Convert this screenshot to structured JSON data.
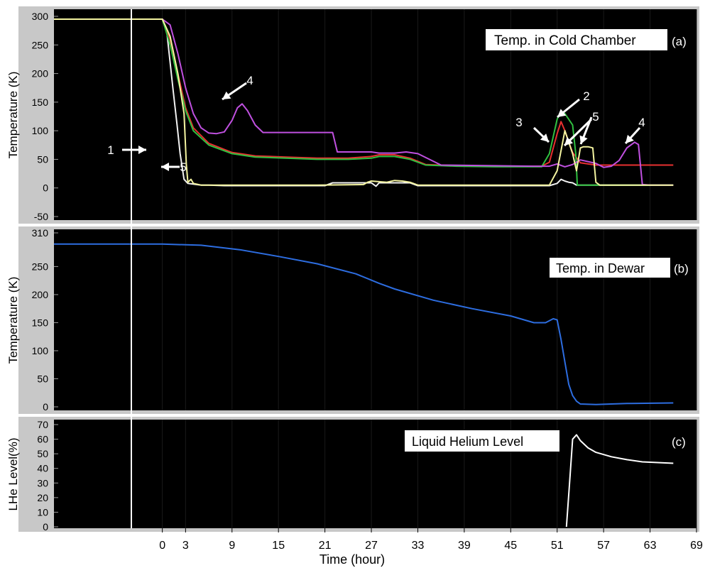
{
  "chart_data": [
    {
      "type": "line",
      "panel_label": "(a)",
      "title": "Temp. in Cold Chamber",
      "ylabel": "Temperature (K)",
      "xlabel": "",
      "xlim": [
        -14,
        69
      ],
      "ylim": [
        -50,
        300
      ],
      "yticks": [
        300,
        250,
        200,
        150,
        100,
        50,
        0,
        -50
      ],
      "ytick_labels": [
        "300",
        "250",
        "200",
        "150",
        "100",
        "50",
        "0",
        "-50"
      ],
      "grid": true,
      "series": [
        {
          "id": "s1",
          "color": "#f2f2f2",
          "x": [
            -14,
            0,
            0.6,
            1.4,
            1.9,
            2.3,
            2.8,
            3.3,
            5,
            6,
            8,
            21,
            22,
            27,
            27.6,
            28,
            32,
            33,
            50,
            51,
            51.5,
            52,
            52.5,
            53,
            53.5,
            54,
            60,
            66
          ],
          "y": [
            295,
            295,
            270,
            170,
            110,
            60,
            15,
            8,
            5,
            5,
            4,
            4,
            9,
            9,
            3,
            9,
            9,
            4,
            4,
            8,
            15,
            12,
            10,
            9,
            5,
            5,
            5,
            5
          ]
        },
        {
          "id": "s2",
          "color": "#e83030",
          "x": [
            -14,
            0,
            1,
            2,
            3,
            4,
            6,
            9,
            12,
            16,
            20,
            24,
            27,
            28,
            30,
            32,
            34,
            38,
            43,
            49,
            50,
            51,
            51.5,
            52,
            52.5,
            53,
            54,
            56,
            60,
            66
          ],
          "y": [
            295,
            295,
            260,
            200,
            140,
            105,
            78,
            62,
            56,
            54,
            52,
            52,
            55,
            58,
            58,
            52,
            41,
            39,
            38,
            38,
            45,
            95,
            116,
            100,
            80,
            62,
            44,
            40,
            40,
            40
          ]
        },
        {
          "id": "s3",
          "color": "#30c040",
          "x": [
            -14,
            0,
            1,
            2,
            3,
            4,
            6,
            9,
            12,
            16,
            20,
            24,
            27,
            28,
            30,
            32,
            34,
            38,
            43,
            49,
            50,
            51,
            51.5,
            52,
            53,
            53.4,
            53.6,
            54,
            60,
            66
          ],
          "y": [
            295,
            295,
            250,
            190,
            135,
            100,
            75,
            60,
            54,
            52,
            50,
            50,
            52,
            55,
            55,
            50,
            40,
            38,
            37,
            37,
            60,
            120,
            135,
            130,
            110,
            60,
            5,
            5,
            5,
            5
          ]
        },
        {
          "id": "s4",
          "color": "#c050e0",
          "x": [
            -14,
            0,
            1,
            2,
            3,
            4,
            5,
            6,
            7,
            8,
            9,
            9.7,
            10.3,
            11,
            12,
            13,
            22,
            22.6,
            27,
            28,
            30,
            31.5,
            33,
            36,
            48,
            50,
            51,
            52,
            53,
            54,
            56,
            57,
            58,
            59,
            60,
            61,
            61.5,
            62,
            63,
            66
          ],
          "y": [
            295,
            295,
            285,
            235,
            175,
            130,
            105,
            96,
            95,
            98,
            118,
            140,
            147,
            135,
            110,
            97,
            97,
            63,
            63,
            61,
            61,
            63,
            60,
            40,
            38,
            38,
            42,
            37,
            41,
            49,
            43,
            36,
            38,
            48,
            70,
            80,
            76,
            6,
            5,
            5
          ]
        },
        {
          "id": "s5",
          "color": "#f4f4a0",
          "x": [
            -14,
            0,
            1,
            2,
            2.8,
            3.1,
            3.3,
            3.7,
            4,
            5,
            10,
            20,
            26,
            26.5,
            27,
            28,
            29,
            30,
            31,
            32,
            33,
            35,
            49,
            50,
            51,
            52,
            52.5,
            53,
            53.5,
            54,
            54.4,
            55,
            55.6,
            56,
            56.5,
            66
          ],
          "y": [
            295,
            295,
            265,
            200,
            130,
            40,
            10,
            15,
            8,
            5,
            5,
            5,
            6,
            10,
            12,
            11,
            10,
            13,
            12,
            10,
            5,
            5,
            5,
            5,
            30,
            100,
            80,
            60,
            30,
            70,
            72,
            72,
            70,
            10,
            5,
            5
          ]
        }
      ],
      "annotations": [
        {
          "text": "1",
          "target_series": "s1"
        },
        {
          "text": "2",
          "target_series": "s2"
        },
        {
          "text": "3",
          "target_series": "s3"
        },
        {
          "text": "4",
          "target_series": "s4"
        },
        {
          "text": "4",
          "target_series": "s4"
        },
        {
          "text": "5",
          "target_series": "s5"
        },
        {
          "text": "5",
          "target_series": "s5"
        }
      ]
    },
    {
      "type": "line",
      "panel_label": "(b)",
      "title": "Temp. in Dewar",
      "ylabel": "Temperature (K)",
      "xlabel": "",
      "xlim": [
        -14,
        69
      ],
      "ylim": [
        0,
        310
      ],
      "yticks": [
        310,
        250,
        200,
        150,
        100,
        50,
        0
      ],
      "ytick_labels": [
        "310",
        "250",
        "200",
        "150",
        "100",
        "50",
        "0"
      ],
      "grid": true,
      "series": [
        {
          "id": "dewar",
          "color": "#2d6de0",
          "x": [
            -14,
            0,
            5,
            10,
            15,
            20,
            25,
            28,
            30,
            35,
            40,
            45,
            48,
            49.5,
            50.5,
            51,
            51.5,
            52,
            52.5,
            53,
            53.5,
            54,
            56,
            60,
            66
          ],
          "y": [
            290,
            290,
            288,
            280,
            268,
            255,
            237,
            220,
            210,
            190,
            175,
            162,
            150,
            150,
            157,
            155,
            120,
            80,
            40,
            20,
            10,
            5,
            4,
            6,
            7
          ]
        }
      ]
    },
    {
      "type": "line",
      "panel_label": "(c)",
      "title": "Liquid Helium Level",
      "ylabel": "LHe Level(%)",
      "xlabel": "Time (hour)",
      "xlim": [
        -14,
        69
      ],
      "ylim": [
        0,
        70
      ],
      "yticks": [
        70,
        60,
        50,
        40,
        30,
        20,
        10,
        0
      ],
      "ytick_labels": [
        "70",
        "60",
        "50",
        "40",
        "30",
        "20",
        "10",
        "0"
      ],
      "xticks": [
        0,
        3,
        9,
        15,
        21,
        27,
        33,
        39,
        45,
        51,
        57,
        63,
        69
      ],
      "xtick_labels": [
        "0",
        "3",
        "9",
        "15",
        "21",
        "27",
        "33",
        "39",
        "45",
        "51",
        "57",
        "63",
        "69"
      ],
      "grid": true,
      "series": [
        {
          "id": "lhe",
          "color": "#ffffff",
          "x": [
            52.2,
            52.6,
            53,
            53.5,
            54,
            55,
            56,
            58,
            60,
            62,
            64,
            66
          ],
          "y": [
            0,
            30,
            60,
            63,
            59,
            54,
            51,
            48,
            46,
            44.5,
            44,
            43.5
          ]
        }
      ]
    }
  ]
}
